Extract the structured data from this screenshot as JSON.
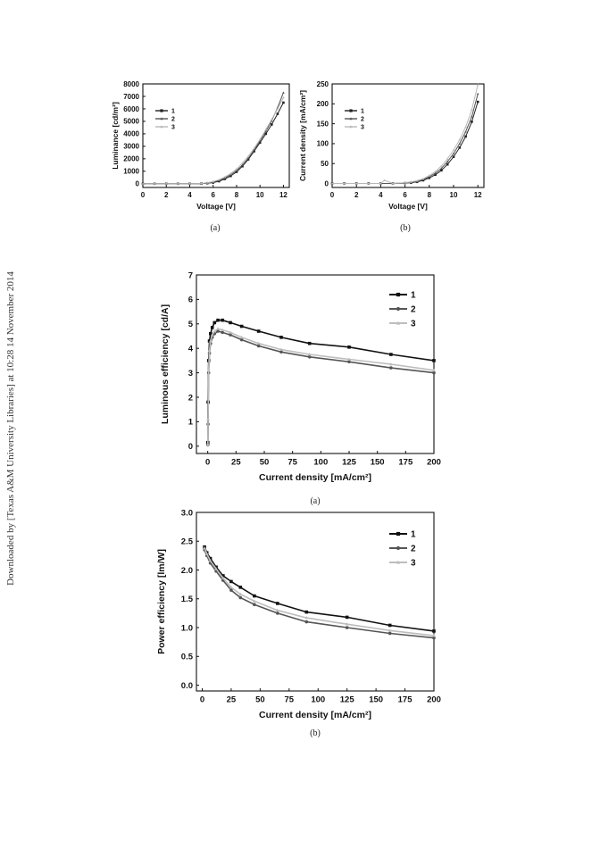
{
  "watermark": "Downloaded by [Texas A&M University Libraries] at 10:28 14 November 2014",
  "chart_data": [
    {
      "type": "line",
      "caption": "(a)",
      "xlabel": "Voltage [V]",
      "ylabel": "Luminance [cd/m²]",
      "xlim": [
        0,
        12.5
      ],
      "ylim": [
        -300,
        8000
      ],
      "xticks": [
        0,
        2,
        4,
        6,
        8,
        10,
        12
      ],
      "yticks": [
        0,
        1000,
        2000,
        3000,
        4000,
        5000,
        6000,
        7000,
        8000
      ],
      "legend_position": "top-left",
      "series": [
        {
          "name": "1",
          "color": "#222222",
          "marker": "square",
          "x": [
            0,
            1,
            2,
            3,
            4,
            5,
            5.5,
            6,
            6.5,
            7,
            7.5,
            8,
            8.5,
            9,
            9.5,
            10,
            10.5,
            11,
            11.5,
            12
          ],
          "y": [
            0,
            0,
            0,
            0,
            0,
            10,
            40,
            90,
            200,
            380,
            620,
            950,
            1400,
            1950,
            2600,
            3300,
            4000,
            4750,
            5600,
            6500
          ]
        },
        {
          "name": "2",
          "color": "#555555",
          "marker": "triangle",
          "x": [
            0,
            1,
            2,
            3,
            4,
            5,
            5.5,
            6,
            6.5,
            7,
            7.5,
            8,
            8.5,
            9,
            9.5,
            10,
            10.5,
            11,
            11.5,
            12
          ],
          "y": [
            0,
            0,
            0,
            0,
            0,
            15,
            60,
            140,
            270,
            460,
            720,
            1050,
            1500,
            2050,
            2700,
            3450,
            4200,
            5050,
            6100,
            7300
          ]
        },
        {
          "name": "3",
          "color": "#b8b8b8",
          "marker": "triangle",
          "x": [
            0,
            1,
            2,
            3,
            4,
            5,
            5.5,
            6,
            6.5,
            7,
            7.5,
            8,
            8.5,
            9,
            9.5,
            10,
            10.5,
            11,
            11.5,
            12
          ],
          "y": [
            0,
            0,
            0,
            0,
            0,
            20,
            80,
            170,
            320,
            540,
            820,
            1180,
            1650,
            2200,
            2850,
            3550,
            4350,
            5150,
            6000,
            6900
          ]
        }
      ]
    },
    {
      "type": "line",
      "caption": "(b)",
      "xlabel": "Voltage [V]",
      "ylabel": "Current density [mA/cm²]",
      "xlim": [
        0,
        12.5
      ],
      "ylim": [
        -10,
        250
      ],
      "xticks": [
        0,
        2,
        4,
        6,
        8,
        10,
        12
      ],
      "yticks": [
        0,
        50,
        100,
        150,
        200,
        250
      ],
      "legend_position": "top-left",
      "series": [
        {
          "name": "1",
          "color": "#222222",
          "marker": "square",
          "x": [
            0,
            1,
            2,
            3,
            4,
            5,
            6,
            6.5,
            7,
            7.5,
            8,
            8.5,
            9,
            9.5,
            10,
            10.5,
            11,
            11.5,
            12
          ],
          "y": [
            0,
            0,
            0,
            0,
            0,
            0,
            1,
            2,
            4,
            8,
            14,
            22,
            33,
            48,
            67,
            90,
            118,
            155,
            205
          ]
        },
        {
          "name": "2",
          "color": "#555555",
          "marker": "triangle",
          "x": [
            0,
            1,
            2,
            3,
            4,
            5,
            6,
            6.5,
            7,
            7.5,
            8,
            8.5,
            9,
            9.5,
            10,
            10.5,
            11,
            11.5,
            12
          ],
          "y": [
            0,
            0,
            0,
            0,
            0,
            0,
            1,
            3,
            5,
            10,
            17,
            26,
            38,
            55,
            75,
            100,
            130,
            168,
            225
          ]
        },
        {
          "name": "3",
          "color": "#b8b8b8",
          "marker": "triangle",
          "x": [
            0,
            1,
            2,
            3,
            4,
            4.3,
            5,
            6,
            6.5,
            7,
            7.5,
            8,
            8.5,
            9,
            9.5,
            10,
            10.5,
            11,
            11.5,
            12
          ],
          "y": [
            0,
            0,
            0,
            0,
            0,
            8,
            0,
            2,
            4,
            7,
            12,
            20,
            30,
            44,
            62,
            84,
            110,
            142,
            185,
            248
          ]
        }
      ]
    },
    {
      "type": "line",
      "caption": "(a)",
      "xlabel": "Current density [mA/cm²]",
      "ylabel": "Luminous efficiency [cd/A]",
      "xlim": [
        -10,
        200
      ],
      "ylim": [
        -0.3,
        7
      ],
      "xticks": [
        0,
        25,
        50,
        75,
        100,
        125,
        150,
        175,
        200
      ],
      "yticks": [
        0,
        1,
        2,
        3,
        4,
        5,
        6,
        7
      ],
      "legend_position": "top-right",
      "series": [
        {
          "name": "1",
          "color": "#111111",
          "marker": "square",
          "x": [
            0.1,
            0.3,
            0.8,
            1.5,
            2.5,
            4,
            6,
            9,
            13,
            20,
            30,
            45,
            65,
            90,
            125,
            162,
            200
          ],
          "y": [
            0.15,
            1.8,
            3.5,
            4.3,
            4.6,
            4.85,
            5.05,
            5.15,
            5.15,
            5.05,
            4.9,
            4.7,
            4.45,
            4.2,
            4.05,
            3.75,
            3.5
          ]
        },
        {
          "name": "2",
          "color": "#555555",
          "marker": "circle",
          "x": [
            0.1,
            0.3,
            0.8,
            1.5,
            2.5,
            4,
            6,
            9,
            13,
            20,
            30,
            45,
            65,
            90,
            125,
            162,
            200
          ],
          "y": [
            0.05,
            0.9,
            3.0,
            3.8,
            4.2,
            4.45,
            4.6,
            4.7,
            4.65,
            4.55,
            4.35,
            4.1,
            3.85,
            3.65,
            3.45,
            3.2,
            3.0
          ]
        },
        {
          "name": "3",
          "color": "#bdbdbd",
          "marker": "triangle",
          "x": [
            0.1,
            0.3,
            0.8,
            1.5,
            2.5,
            4,
            6,
            9,
            13,
            20,
            30,
            45,
            65,
            90,
            125,
            162,
            200
          ],
          "y": [
            0.05,
            1.1,
            3.1,
            3.9,
            4.3,
            4.55,
            4.7,
            4.8,
            4.75,
            4.65,
            4.45,
            4.2,
            3.95,
            3.75,
            3.55,
            3.35,
            3.1
          ]
        }
      ]
    },
    {
      "type": "line",
      "caption": "(b)",
      "xlabel": "Current density [mA/cm²]",
      "ylabel": "Power efficiency [lm/W]",
      "xlim": [
        -5,
        200
      ],
      "ylim": [
        -0.1,
        3.0
      ],
      "xticks": [
        0,
        25,
        50,
        75,
        100,
        125,
        150,
        175,
        200
      ],
      "yticks": [
        0.0,
        0.5,
        1.0,
        1.5,
        2.0,
        2.5,
        3.0
      ],
      "ytick_labels": [
        "0.0",
        "0.5",
        "1.0",
        "1.5",
        "2.0",
        "2.5",
        "3.0"
      ],
      "legend_position": "top-right",
      "series": [
        {
          "name": "1",
          "color": "#111111",
          "marker": "square",
          "x": [
            2,
            4,
            7,
            12,
            18,
            25,
            33,
            45,
            65,
            90,
            125,
            162,
            200
          ],
          "y": [
            2.4,
            2.3,
            2.2,
            2.05,
            1.9,
            1.8,
            1.7,
            1.55,
            1.42,
            1.27,
            1.18,
            1.04,
            0.94
          ]
        },
        {
          "name": "2",
          "color": "#555555",
          "marker": "circle",
          "x": [
            2,
            4,
            7,
            12,
            18,
            25,
            33,
            45,
            65,
            90,
            125,
            162,
            200
          ],
          "y": [
            2.35,
            2.25,
            2.12,
            1.98,
            1.82,
            1.65,
            1.52,
            1.4,
            1.25,
            1.1,
            1.0,
            0.9,
            0.82
          ]
        },
        {
          "name": "3",
          "color": "#bdbdbd",
          "marker": "triangle",
          "x": [
            2,
            4,
            7,
            12,
            18,
            25,
            33,
            45,
            65,
            90,
            125,
            162,
            200
          ],
          "y": [
            2.38,
            2.28,
            2.16,
            2.02,
            1.86,
            1.7,
            1.58,
            1.46,
            1.3,
            1.17,
            1.06,
            0.95,
            0.86
          ]
        }
      ]
    }
  ]
}
